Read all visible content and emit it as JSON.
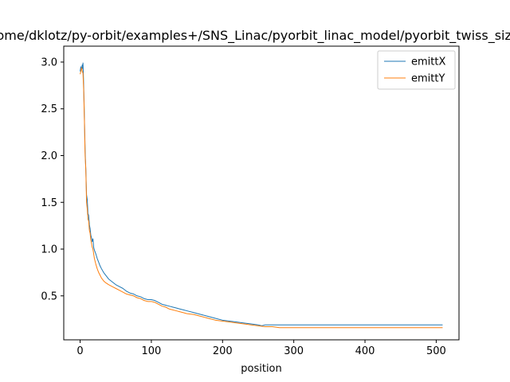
{
  "chart_data": {
    "type": "line",
    "title": "/home/dklotz/py-orbit/examples+/SNS_Linac/pyorbit_linac_model/pyorbit_twiss_sizes",
    "xlabel": "position",
    "ylabel": "",
    "xlim": [
      -23,
      532
    ],
    "ylim": [
      0.03,
      3.17
    ],
    "xticks": [
      0,
      100,
      200,
      300,
      400,
      500
    ],
    "yticks": [
      0.5,
      1.0,
      1.5,
      2.0,
      2.5,
      3.0
    ],
    "xtick_labels": [
      "0",
      "100",
      "200",
      "300",
      "400",
      "500"
    ],
    "ytick_labels": [
      "0.5",
      "1.0",
      "1.5",
      "2.0",
      "2.5",
      "3.0"
    ],
    "grid": false,
    "legend_position": "top-right",
    "series": [
      {
        "name": "emittX",
        "color": "#1f77b4",
        "x": [
          0,
          1,
          2,
          3,
          3.5,
          4,
          5,
          6,
          7,
          8,
          9,
          10,
          11,
          12,
          13,
          14,
          15,
          16,
          17,
          18,
          19,
          20,
          22,
          24,
          26,
          28,
          30,
          33,
          36,
          40,
          45,
          50,
          55,
          60,
          65,
          70,
          75,
          80,
          85,
          90,
          95,
          100,
          105,
          110,
          115,
          120,
          125,
          130,
          135,
          140,
          145,
          150,
          160,
          170,
          180,
          190,
          200,
          210,
          220,
          230,
          240,
          250,
          255,
          260,
          270,
          280,
          290,
          300,
          320,
          340,
          360,
          380,
          400,
          420,
          440,
          460,
          480,
          500,
          509
        ],
        "y": [
          2.9,
          2.95,
          2.92,
          2.97,
          2.93,
          2.99,
          2.75,
          2.4,
          2.05,
          1.85,
          1.58,
          1.53,
          1.38,
          1.36,
          1.26,
          1.22,
          1.15,
          1.12,
          1.08,
          1.11,
          1.02,
          0.99,
          0.95,
          0.9,
          0.86,
          0.82,
          0.79,
          0.75,
          0.72,
          0.68,
          0.65,
          0.62,
          0.6,
          0.58,
          0.55,
          0.53,
          0.52,
          0.5,
          0.49,
          0.47,
          0.46,
          0.46,
          0.45,
          0.43,
          0.41,
          0.4,
          0.39,
          0.38,
          0.37,
          0.36,
          0.35,
          0.34,
          0.32,
          0.3,
          0.28,
          0.26,
          0.24,
          0.23,
          0.22,
          0.21,
          0.2,
          0.19,
          0.18,
          0.19,
          0.19,
          0.19,
          0.19,
          0.19,
          0.19,
          0.19,
          0.19,
          0.19,
          0.19,
          0.19,
          0.19,
          0.19,
          0.19,
          0.19,
          0.19
        ]
      },
      {
        "name": "emittY",
        "color": "#ff7f0e",
        "x": [
          0,
          1,
          2,
          3,
          4,
          5,
          6,
          7,
          8,
          9,
          10,
          11,
          12,
          13,
          14,
          15,
          16,
          17,
          18,
          19,
          20,
          22,
          24,
          26,
          28,
          30,
          33,
          36,
          40,
          45,
          50,
          55,
          60,
          65,
          70,
          75,
          80,
          85,
          90,
          95,
          100,
          105,
          110,
          115,
          120,
          125,
          130,
          135,
          140,
          145,
          150,
          160,
          170,
          180,
          190,
          200,
          210,
          220,
          230,
          240,
          250,
          260,
          270,
          280,
          300,
          320,
          340,
          360,
          380,
          400,
          420,
          440,
          460,
          480,
          500,
          509
        ],
        "y": [
          2.87,
          2.9,
          2.94,
          2.9,
          2.88,
          2.7,
          2.38,
          2.0,
          1.85,
          1.5,
          1.43,
          1.32,
          1.3,
          1.2,
          1.17,
          1.1,
          1.06,
          1.02,
          1.0,
          0.95,
          0.9,
          0.84,
          0.79,
          0.75,
          0.72,
          0.69,
          0.66,
          0.64,
          0.62,
          0.6,
          0.58,
          0.56,
          0.54,
          0.52,
          0.51,
          0.5,
          0.48,
          0.47,
          0.45,
          0.44,
          0.44,
          0.43,
          0.41,
          0.39,
          0.38,
          0.36,
          0.35,
          0.34,
          0.33,
          0.32,
          0.31,
          0.3,
          0.28,
          0.26,
          0.24,
          0.23,
          0.22,
          0.21,
          0.2,
          0.19,
          0.18,
          0.17,
          0.17,
          0.16,
          0.16,
          0.16,
          0.16,
          0.16,
          0.16,
          0.16,
          0.16,
          0.16,
          0.16,
          0.16,
          0.16,
          0.16
        ]
      }
    ]
  }
}
